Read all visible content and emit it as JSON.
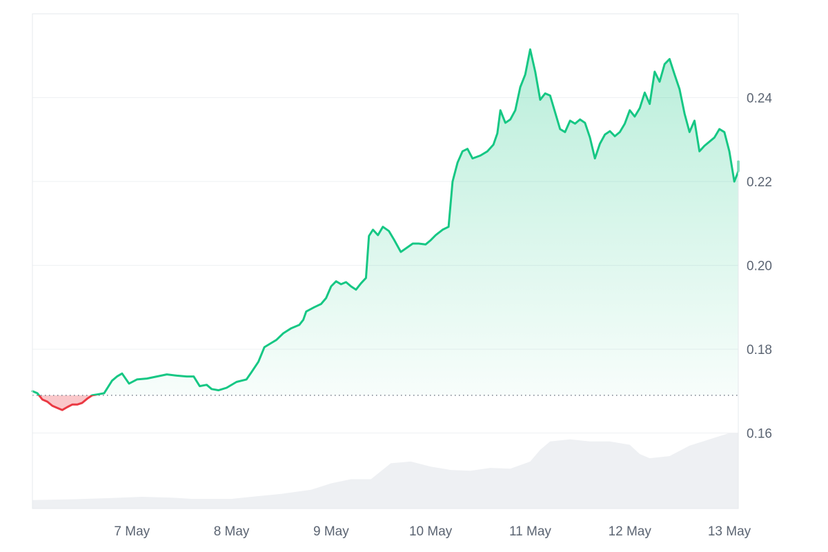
{
  "chart_data": {
    "type": "area",
    "title": "",
    "xlabel": "",
    "ylabel": "",
    "ylim": [
      0.142,
      0.26
    ],
    "xlim": [
      0,
      7.09
    ],
    "x_ticks": [
      {
        "x": 1,
        "label": "7 May"
      },
      {
        "x": 2,
        "label": "8 May"
      },
      {
        "x": 3,
        "label": "9 May"
      },
      {
        "x": 4,
        "label": "10 May"
      },
      {
        "x": 5,
        "label": "11 May"
      },
      {
        "x": 6,
        "label": "12 May"
      },
      {
        "x": 7,
        "label": "13 May"
      }
    ],
    "y_ticks": [
      {
        "value": 0.16,
        "label": "0.16"
      },
      {
        "value": 0.18,
        "label": "0.18"
      },
      {
        "value": 0.2,
        "label": "0.20"
      },
      {
        "value": 0.22,
        "label": "0.22"
      },
      {
        "value": 0.24,
        "label": "0.24"
      }
    ],
    "baseline": 0.169,
    "grid": true,
    "colors": {
      "up": "#16c784",
      "down": "#ea3943",
      "up_fill": "#16c784",
      "down_fill": "#f8b4b8",
      "volume": "#eef0f3",
      "grid": "#eef0f3",
      "tick": "#5b6472"
    },
    "series": [
      {
        "values": [
          [
            0.0,
            0.17
          ],
          [
            0.05,
            0.1695
          ],
          [
            0.1,
            0.168
          ],
          [
            0.15,
            0.1675
          ],
          [
            0.2,
            0.1665
          ],
          [
            0.25,
            0.166
          ],
          [
            0.3,
            0.1655
          ],
          [
            0.35,
            0.1662
          ],
          [
            0.4,
            0.1668
          ],
          [
            0.45,
            0.1668
          ],
          [
            0.5,
            0.1672
          ],
          [
            0.55,
            0.1682
          ],
          [
            0.6,
            0.169
          ],
          [
            0.65,
            0.1692
          ],
          [
            0.72,
            0.1695
          ],
          [
            0.8,
            0.1725
          ],
          [
            0.85,
            0.1735
          ],
          [
            0.9,
            0.1742
          ],
          [
            0.97,
            0.1718
          ],
          [
            1.05,
            0.1728
          ],
          [
            1.15,
            0.173
          ],
          [
            1.25,
            0.1735
          ],
          [
            1.35,
            0.174
          ],
          [
            1.45,
            0.1737
          ],
          [
            1.55,
            0.1735
          ],
          [
            1.62,
            0.1735
          ],
          [
            1.68,
            0.1712
          ],
          [
            1.75,
            0.1715
          ],
          [
            1.8,
            0.1705
          ],
          [
            1.87,
            0.1702
          ],
          [
            1.95,
            0.1708
          ],
          [
            2.05,
            0.1722
          ],
          [
            2.15,
            0.1728
          ],
          [
            2.2,
            0.1745
          ],
          [
            2.27,
            0.177
          ],
          [
            2.33,
            0.1805
          ],
          [
            2.4,
            0.1815
          ],
          [
            2.45,
            0.1822
          ],
          [
            2.52,
            0.1838
          ],
          [
            2.6,
            0.185
          ],
          [
            2.68,
            0.1858
          ],
          [
            2.72,
            0.187
          ],
          [
            2.75,
            0.189
          ],
          [
            2.83,
            0.19
          ],
          [
            2.9,
            0.1908
          ],
          [
            2.95,
            0.1922
          ],
          [
            3.0,
            0.195
          ],
          [
            3.05,
            0.1962
          ],
          [
            3.1,
            0.1955
          ],
          [
            3.15,
            0.196
          ],
          [
            3.2,
            0.195
          ],
          [
            3.25,
            0.1942
          ],
          [
            3.3,
            0.1957
          ],
          [
            3.35,
            0.197
          ],
          [
            3.38,
            0.207
          ],
          [
            3.42,
            0.2085
          ],
          [
            3.47,
            0.2072
          ],
          [
            3.52,
            0.2092
          ],
          [
            3.58,
            0.2082
          ],
          [
            3.63,
            0.2062
          ],
          [
            3.7,
            0.2032
          ],
          [
            3.76,
            0.2042
          ],
          [
            3.82,
            0.2052
          ],
          [
            3.88,
            0.2052
          ],
          [
            3.95,
            0.205
          ],
          [
            4.0,
            0.206
          ],
          [
            4.05,
            0.2072
          ],
          [
            4.12,
            0.2085
          ],
          [
            4.18,
            0.2092
          ],
          [
            4.22,
            0.22
          ],
          [
            4.27,
            0.2245
          ],
          [
            4.32,
            0.2272
          ],
          [
            4.37,
            0.2278
          ],
          [
            4.42,
            0.2255
          ],
          [
            4.5,
            0.2262
          ],
          [
            4.57,
            0.2272
          ],
          [
            4.63,
            0.2288
          ],
          [
            4.67,
            0.2315
          ],
          [
            4.7,
            0.237
          ],
          [
            4.75,
            0.234
          ],
          [
            4.8,
            0.2348
          ],
          [
            4.85,
            0.237
          ],
          [
            4.9,
            0.2425
          ],
          [
            4.95,
            0.2455
          ],
          [
            5.0,
            0.2515
          ],
          [
            5.05,
            0.2462
          ],
          [
            5.1,
            0.2395
          ],
          [
            5.15,
            0.241
          ],
          [
            5.2,
            0.2405
          ],
          [
            5.25,
            0.2365
          ],
          [
            5.3,
            0.2325
          ],
          [
            5.35,
            0.2318
          ],
          [
            5.4,
            0.2345
          ],
          [
            5.45,
            0.2338
          ],
          [
            5.5,
            0.2348
          ],
          [
            5.55,
            0.234
          ],
          [
            5.6,
            0.2305
          ],
          [
            5.65,
            0.2255
          ],
          [
            5.7,
            0.229
          ],
          [
            5.75,
            0.2312
          ],
          [
            5.8,
            0.232
          ],
          [
            5.85,
            0.2308
          ],
          [
            5.9,
            0.2318
          ],
          [
            5.95,
            0.2338
          ],
          [
            6.0,
            0.237
          ],
          [
            6.05,
            0.2355
          ],
          [
            6.1,
            0.2375
          ],
          [
            6.15,
            0.2412
          ],
          [
            6.2,
            0.2385
          ],
          [
            6.25,
            0.2462
          ],
          [
            6.3,
            0.2438
          ],
          [
            6.35,
            0.248
          ],
          [
            6.4,
            0.2492
          ],
          [
            6.45,
            0.2455
          ],
          [
            6.5,
            0.242
          ],
          [
            6.55,
            0.2362
          ],
          [
            6.6,
            0.2318
          ],
          [
            6.65,
            0.2345
          ],
          [
            6.7,
            0.2272
          ],
          [
            6.75,
            0.2285
          ],
          [
            6.8,
            0.2295
          ],
          [
            6.85,
            0.2305
          ],
          [
            6.9,
            0.2325
          ],
          [
            6.95,
            0.2318
          ],
          [
            7.0,
            0.2272
          ],
          [
            7.05,
            0.22
          ],
          [
            7.08,
            0.2218
          ],
          [
            7.12,
            0.2225
          ],
          [
            7.17,
            0.224
          ],
          [
            7.22,
            0.2232
          ],
          [
            7.26,
            0.2248
          ]
        ]
      }
    ],
    "volume": [
      [
        0.0,
        0.144
      ],
      [
        0.4,
        0.1442
      ],
      [
        0.8,
        0.1445
      ],
      [
        1.1,
        0.1448
      ],
      [
        1.4,
        0.1446
      ],
      [
        1.6,
        0.1443
      ],
      [
        2.0,
        0.1443
      ],
      [
        2.2,
        0.1448
      ],
      [
        2.5,
        0.1455
      ],
      [
        2.8,
        0.1465
      ],
      [
        3.0,
        0.148
      ],
      [
        3.2,
        0.149
      ],
      [
        3.4,
        0.149
      ],
      [
        3.6,
        0.1528
      ],
      [
        3.8,
        0.1532
      ],
      [
        4.0,
        0.152
      ],
      [
        4.2,
        0.1512
      ],
      [
        4.4,
        0.151
      ],
      [
        4.6,
        0.1517
      ],
      [
        4.8,
        0.1515
      ],
      [
        5.0,
        0.1532
      ],
      [
        5.1,
        0.156
      ],
      [
        5.2,
        0.158
      ],
      [
        5.4,
        0.1585
      ],
      [
        5.6,
        0.158
      ],
      [
        5.8,
        0.158
      ],
      [
        6.0,
        0.1572
      ],
      [
        6.1,
        0.155
      ],
      [
        6.2,
        0.154
      ],
      [
        6.4,
        0.1545
      ],
      [
        6.6,
        0.157
      ],
      [
        6.8,
        0.1585
      ],
      [
        7.0,
        0.16
      ],
      [
        7.15,
        0.16
      ],
      [
        7.26,
        0.1595
      ]
    ]
  }
}
